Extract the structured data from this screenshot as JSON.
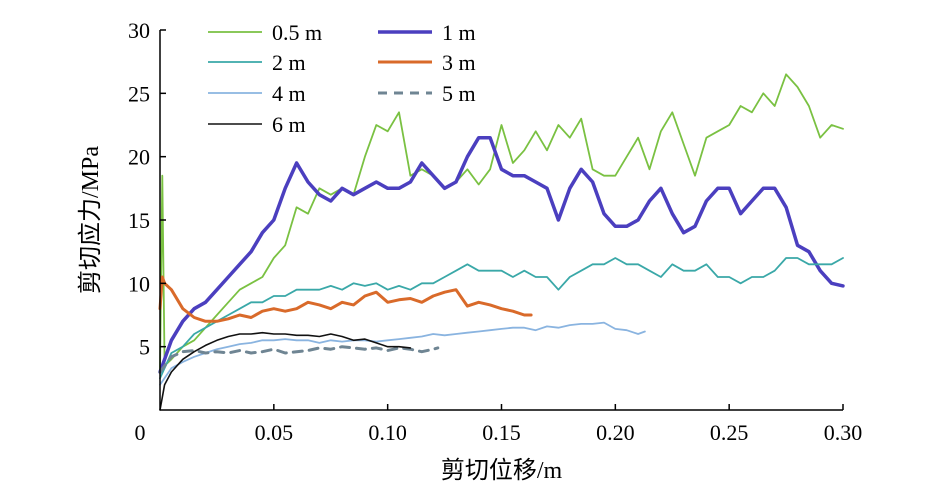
{
  "chart_data": {
    "type": "line",
    "xlabel": "剪切位移/m",
    "ylabel": "剪切应力/MPa",
    "xlim": [
      0,
      0.3
    ],
    "ylim": [
      0,
      30
    ],
    "xticks": [
      "0",
      "0.05",
      "0.10",
      "0.15",
      "0.20",
      "0.25",
      "0.30"
    ],
    "yticks": [
      "5",
      "10",
      "15",
      "20",
      "25",
      "30"
    ],
    "grid": false,
    "legend_placement": "top-left",
    "series": [
      {
        "name": "0.5 m",
        "color": "#7ac142",
        "width": 1.8,
        "dash": "",
        "x": [
          0,
          0.001,
          0.002,
          0.005,
          0.01,
          0.015,
          0.02,
          0.025,
          0.03,
          0.035,
          0.04,
          0.045,
          0.05,
          0.055,
          0.06,
          0.065,
          0.07,
          0.075,
          0.08,
          0.085,
          0.09,
          0.095,
          0.1,
          0.105,
          0.11,
          0.115,
          0.12,
          0.125,
          0.13,
          0.135,
          0.14,
          0.145,
          0.15,
          0.155,
          0.16,
          0.165,
          0.17,
          0.175,
          0.18,
          0.185,
          0.19,
          0.195,
          0.2,
          0.205,
          0.21,
          0.215,
          0.22,
          0.225,
          0.23,
          0.235,
          0.24,
          0.245,
          0.25,
          0.255,
          0.26,
          0.265,
          0.27,
          0.275,
          0.28,
          0.285,
          0.29,
          0.295,
          0.3
        ],
        "y": [
          3,
          18.5,
          3.5,
          4,
          5,
          5.5,
          6.5,
          7.5,
          8.5,
          9.5,
          10,
          10.5,
          12,
          13,
          16,
          15.5,
          17.5,
          17,
          17.5,
          17,
          20,
          22.5,
          22,
          23.5,
          18.5,
          19,
          18.5,
          17.5,
          18,
          19,
          17.8,
          19,
          22.5,
          19.5,
          20.5,
          22,
          20.5,
          22.5,
          21.5,
          23,
          19,
          18.5,
          18.5,
          20,
          21.5,
          19,
          22,
          23.5,
          21,
          18.5,
          21.5,
          22,
          22.5,
          24,
          23.5,
          25,
          24,
          26.5,
          25.5,
          24,
          21.5,
          22.5,
          22.2
        ]
      },
      {
        "name": "1 m",
        "color": "#4b3fbf",
        "width": 3.5,
        "dash": "",
        "x": [
          0,
          0.001,
          0.002,
          0.005,
          0.01,
          0.015,
          0.02,
          0.025,
          0.03,
          0.035,
          0.04,
          0.045,
          0.05,
          0.055,
          0.06,
          0.065,
          0.07,
          0.075,
          0.08,
          0.085,
          0.09,
          0.095,
          0.1,
          0.105,
          0.11,
          0.115,
          0.12,
          0.125,
          0.13,
          0.135,
          0.14,
          0.145,
          0.15,
          0.155,
          0.16,
          0.165,
          0.17,
          0.175,
          0.18,
          0.185,
          0.19,
          0.195,
          0.2,
          0.205,
          0.21,
          0.215,
          0.22,
          0.225,
          0.23,
          0.235,
          0.24,
          0.245,
          0.25,
          0.255,
          0.26,
          0.265,
          0.27,
          0.275,
          0.28,
          0.285,
          0.29,
          0.295,
          0.3
        ],
        "y": [
          3,
          3.5,
          4,
          5.5,
          7,
          8,
          8.5,
          9.5,
          10.5,
          11.5,
          12.5,
          14,
          15,
          17.5,
          19.5,
          18,
          17,
          16.5,
          17.5,
          17,
          17.5,
          18,
          17.5,
          17.5,
          18,
          19.5,
          18.5,
          17.5,
          18,
          20,
          21.5,
          21.5,
          19,
          18.5,
          18.5,
          18,
          17.5,
          15,
          17.5,
          19,
          18,
          15.5,
          14.5,
          14.5,
          15,
          16.5,
          17.5,
          15.5,
          14,
          14.5,
          16.5,
          17.5,
          17.5,
          15.5,
          16.5,
          17.5,
          17.5,
          16,
          13,
          12.5,
          11,
          10,
          9.8
        ]
      },
      {
        "name": "2 m",
        "color": "#3aa8a8",
        "width": 1.8,
        "dash": "",
        "x": [
          0,
          0.005,
          0.01,
          0.015,
          0.02,
          0.025,
          0.03,
          0.035,
          0.04,
          0.045,
          0.05,
          0.055,
          0.06,
          0.065,
          0.07,
          0.075,
          0.08,
          0.085,
          0.09,
          0.095,
          0.1,
          0.105,
          0.11,
          0.115,
          0.12,
          0.125,
          0.13,
          0.135,
          0.14,
          0.145,
          0.15,
          0.155,
          0.16,
          0.165,
          0.17,
          0.175,
          0.18,
          0.185,
          0.19,
          0.195,
          0.2,
          0.205,
          0.21,
          0.215,
          0.22,
          0.225,
          0.23,
          0.235,
          0.24,
          0.245,
          0.25,
          0.255,
          0.26,
          0.265,
          0.27,
          0.275,
          0.28,
          0.285,
          0.29,
          0.295,
          0.3
        ],
        "y": [
          2.5,
          4.5,
          5,
          6,
          6.5,
          7,
          7.5,
          8,
          8.5,
          8.5,
          9,
          9,
          9.5,
          9.5,
          9.5,
          9.8,
          9.5,
          10,
          9.8,
          10,
          9.5,
          9.8,
          9.5,
          10,
          10,
          10.5,
          11,
          11.5,
          11,
          11,
          11,
          10.5,
          11,
          10.5,
          10.5,
          9.5,
          10.5,
          11,
          11.5,
          11.5,
          12,
          11.5,
          11.5,
          11,
          10.5,
          11.5,
          11,
          11,
          11.5,
          10.5,
          10.5,
          10,
          10.5,
          10.5,
          11,
          12,
          12,
          11.5,
          11.5,
          11.5,
          12
        ]
      },
      {
        "name": "3 m",
        "color": "#d96a2a",
        "width": 3,
        "dash": "",
        "x": [
          0,
          0.001,
          0.002,
          0.005,
          0.01,
          0.015,
          0.02,
          0.025,
          0.03,
          0.035,
          0.04,
          0.045,
          0.05,
          0.055,
          0.06,
          0.065,
          0.07,
          0.075,
          0.08,
          0.085,
          0.09,
          0.095,
          0.1,
          0.105,
          0.11,
          0.115,
          0.12,
          0.125,
          0.13,
          0.135,
          0.14,
          0.145,
          0.15,
          0.155,
          0.16,
          0.163
        ],
        "y": [
          8,
          10.5,
          10,
          9.5,
          8,
          7.3,
          7,
          7,
          7.2,
          7.5,
          7.3,
          7.8,
          8,
          7.8,
          8,
          8.5,
          8.3,
          8,
          8.5,
          8.3,
          9,
          9.3,
          8.5,
          8.7,
          8.8,
          8.5,
          9,
          9.3,
          9.5,
          8.2,
          8.5,
          8.3,
          8,
          7.8,
          7.5,
          7.5
        ]
      },
      {
        "name": "4 m",
        "color": "#8ab4e0",
        "width": 1.8,
        "dash": "",
        "x": [
          0,
          0.005,
          0.01,
          0.015,
          0.02,
          0.025,
          0.03,
          0.035,
          0.04,
          0.045,
          0.05,
          0.055,
          0.06,
          0.065,
          0.07,
          0.075,
          0.08,
          0.085,
          0.09,
          0.095,
          0.1,
          0.105,
          0.11,
          0.115,
          0.12,
          0.125,
          0.13,
          0.135,
          0.14,
          0.145,
          0.15,
          0.155,
          0.16,
          0.165,
          0.17,
          0.175,
          0.18,
          0.185,
          0.19,
          0.195,
          0.2,
          0.205,
          0.21,
          0.213
        ],
        "y": [
          2,
          3.3,
          3.8,
          4.2,
          4.5,
          4.8,
          5,
          5.2,
          5.3,
          5.5,
          5.5,
          5.6,
          5.5,
          5.5,
          5.3,
          5.5,
          5.4,
          5.5,
          5.5,
          5.4,
          5.5,
          5.6,
          5.7,
          5.8,
          6,
          5.9,
          6,
          6.1,
          6.2,
          6.3,
          6.4,
          6.5,
          6.5,
          6.3,
          6.6,
          6.5,
          6.7,
          6.8,
          6.8,
          6.9,
          6.4,
          6.3,
          6,
          6.2
        ]
      },
      {
        "name": "5 m",
        "color": "#6f8593",
        "width": 3,
        "dash": "9,7",
        "x": [
          0,
          0.005,
          0.01,
          0.015,
          0.02,
          0.025,
          0.03,
          0.035,
          0.04,
          0.045,
          0.05,
          0.055,
          0.06,
          0.065,
          0.07,
          0.075,
          0.08,
          0.085,
          0.09,
          0.095,
          0.1,
          0.105,
          0.11,
          0.115,
          0.12,
          0.122
        ],
        "y": [
          3,
          4.2,
          4.6,
          4.7,
          4.5,
          4.6,
          4.5,
          4.7,
          4.5,
          4.6,
          4.8,
          4.5,
          4.6,
          4.7,
          4.9,
          4.8,
          5,
          4.9,
          4.8,
          4.9,
          4.7,
          4.9,
          4.8,
          4.6,
          4.8,
          4.9
        ]
      },
      {
        "name": "6 m",
        "color": "#111111",
        "width": 1.6,
        "dash": "",
        "x": [
          0,
          0.002,
          0.005,
          0.01,
          0.015,
          0.02,
          0.025,
          0.03,
          0.035,
          0.04,
          0.045,
          0.05,
          0.055,
          0.06,
          0.065,
          0.07,
          0.075,
          0.08,
          0.085,
          0.09,
          0.095,
          0.1,
          0.105,
          0.11
        ],
        "y": [
          0,
          2,
          3,
          4,
          4.6,
          5.1,
          5.5,
          5.8,
          6,
          6,
          6.1,
          6,
          6,
          5.9,
          5.9,
          5.8,
          6,
          5.8,
          5.5,
          5.6,
          5.3,
          5,
          5,
          4.9
        ]
      }
    ]
  }
}
